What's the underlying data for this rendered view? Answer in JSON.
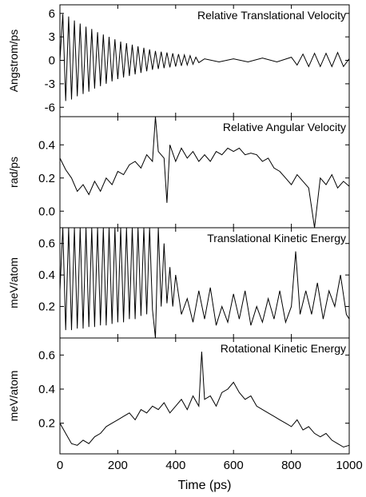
{
  "chart_data": {
    "type": "line",
    "x_shared": {
      "label": "Time (ps)",
      "range": [
        0,
        1000
      ],
      "ticks": [
        0,
        200,
        400,
        600,
        800,
        1000
      ]
    },
    "panels": [
      {
        "title": "Relative Translational Velocity",
        "ylabel": "Angstrom/ps",
        "ylim": [
          -7.2,
          7.1
        ],
        "yticks": [
          -6,
          -3,
          0,
          3,
          6
        ],
        "ytick_labels": [
          "-6",
          "-3",
          "0",
          "3",
          "6"
        ],
        "series": [
          {
            "x": [
              0,
              10,
              20,
              30,
              40,
              50,
              60,
              70,
              80,
              90,
              100,
              110,
              120,
              130,
              140,
              150,
              160,
              170,
              180,
              190,
              200,
              210,
              220,
              230,
              240,
              250,
              260,
              270,
              280,
              290,
              300,
              310,
              320,
              330,
              340,
              350,
              360,
              370,
              380,
              390,
              400,
              410,
              420,
              430,
              440,
              450,
              460,
              470,
              480,
              500,
              550,
              600,
              650,
              700,
              750,
              800,
              820,
              840,
              860,
              880,
              900,
              920,
              940,
              960,
              980,
              1000
            ],
            "y": [
              0,
              5.9,
              -5.2,
              5.6,
              -5.0,
              5.1,
              -4.6,
              4.7,
              -4.3,
              4.3,
              -4.0,
              4.0,
              -3.6,
              3.6,
              -3.3,
              3.3,
              -3.0,
              3.0,
              -2.7,
              2.7,
              -2.4,
              2.4,
              -2.2,
              2.2,
              -2.0,
              2.0,
              -1.8,
              1.8,
              -1.6,
              1.6,
              -1.4,
              1.4,
              -1.2,
              1.2,
              -1.1,
              1.1,
              -1.0,
              1.0,
              -0.9,
              0.9,
              -0.8,
              0.8,
              -0.7,
              0.7,
              -0.6,
              0.6,
              -0.5,
              0.4,
              -0.3,
              0.2,
              -0.2,
              0.2,
              -0.2,
              0.3,
              -0.2,
              0.4,
              -0.6,
              0.8,
              -0.8,
              0.9,
              -0.8,
              0.9,
              -0.8,
              1.0,
              -0.8,
              0.2
            ]
          }
        ]
      },
      {
        "title": "Relative Angular Velocity",
        "ylabel": "rad/ps",
        "ylim": [
          -0.1,
          0.57
        ],
        "yticks": [
          0.0,
          0.2,
          0.4
        ],
        "ytick_labels": [
          "0.0",
          "0.2",
          "0.4"
        ],
        "series": [
          {
            "x": [
              0,
              20,
              40,
              60,
              80,
              100,
              120,
              140,
              160,
              180,
              200,
              220,
              240,
              260,
              280,
              300,
              320,
              330,
              340,
              360,
              370,
              380,
              400,
              420,
              440,
              460,
              480,
              500,
              520,
              540,
              560,
              580,
              600,
              620,
              640,
              660,
              680,
              700,
              720,
              740,
              760,
              780,
              800,
              820,
              840,
              860,
              880,
              900,
              920,
              940,
              960,
              980,
              1000
            ],
            "y": [
              0.32,
              0.25,
              0.2,
              0.12,
              0.16,
              0.1,
              0.18,
              0.12,
              0.2,
              0.16,
              0.24,
              0.22,
              0.28,
              0.3,
              0.26,
              0.34,
              0.3,
              0.57,
              0.36,
              0.32,
              0.05,
              0.4,
              0.3,
              0.38,
              0.32,
              0.36,
              0.3,
              0.34,
              0.3,
              0.36,
              0.34,
              0.38,
              0.36,
              0.38,
              0.34,
              0.35,
              0.34,
              0.3,
              0.32,
              0.26,
              0.24,
              0.2,
              0.16,
              0.22,
              0.18,
              0.14,
              -0.1,
              0.2,
              0.16,
              0.22,
              0.14,
              0.18,
              0.15
            ]
          }
        ]
      },
      {
        "title": "Translational Kinetic Energy",
        "ylabel": "meV/atom",
        "ylim": [
          0,
          0.7
        ],
        "yticks": [
          0.2,
          0.4,
          0.6
        ],
        "ytick_labels": [
          "0.2",
          "0.4",
          "0.6"
        ],
        "series": [
          {
            "x": [
              0,
              10,
              20,
              30,
              40,
              50,
              60,
              70,
              80,
              90,
              100,
              110,
              120,
              130,
              140,
              150,
              160,
              170,
              180,
              190,
              200,
              210,
              220,
              230,
              240,
              250,
              260,
              270,
              280,
              290,
              300,
              310,
              320,
              330,
              340,
              350,
              360,
              370,
              380,
              390,
              400,
              420,
              440,
              460,
              480,
              500,
              520,
              540,
              560,
              580,
              600,
              620,
              640,
              660,
              680,
              700,
              720,
              740,
              760,
              780,
              800,
              815,
              830,
              850,
              870,
              890,
              910,
              930,
              950,
              970,
              990,
              1000
            ],
            "y": [
              0.3,
              0.7,
              0.05,
              0.7,
              0.05,
              0.7,
              0.06,
              0.7,
              0.06,
              0.7,
              0.07,
              0.7,
              0.07,
              0.7,
              0.08,
              0.7,
              0.08,
              0.7,
              0.09,
              0.7,
              0.1,
              0.7,
              0.1,
              0.7,
              0.12,
              0.7,
              0.12,
              0.7,
              0.14,
              0.7,
              0.15,
              0.7,
              0.18,
              0.0,
              0.7,
              0.2,
              0.6,
              0.22,
              0.45,
              0.2,
              0.4,
              0.15,
              0.25,
              0.1,
              0.3,
              0.12,
              0.32,
              0.08,
              0.2,
              0.1,
              0.28,
              0.12,
              0.3,
              0.08,
              0.2,
              0.1,
              0.25,
              0.12,
              0.3,
              0.1,
              0.2,
              0.55,
              0.15,
              0.3,
              0.15,
              0.35,
              0.12,
              0.3,
              0.2,
              0.4,
              0.15,
              0.12
            ]
          }
        ]
      },
      {
        "title": "Rotational Kinetic Energy",
        "ylabel": "meV/atom",
        "ylim": [
          0.02,
          0.7
        ],
        "yticks": [
          0.2,
          0.4,
          0.6
        ],
        "ytick_labels": [
          "0.2",
          "0.4",
          "0.6"
        ],
        "series": [
          {
            "x": [
              0,
              20,
              40,
              60,
              80,
              100,
              120,
              140,
              160,
              180,
              200,
              220,
              240,
              260,
              280,
              300,
              320,
              340,
              360,
              380,
              400,
              420,
              440,
              460,
              480,
              490,
              500,
              520,
              540,
              560,
              580,
              600,
              620,
              640,
              660,
              680,
              700,
              720,
              740,
              760,
              780,
              800,
              820,
              840,
              860,
              880,
              900,
              920,
              940,
              960,
              980,
              1000
            ],
            "y": [
              0.2,
              0.14,
              0.08,
              0.07,
              0.1,
              0.08,
              0.12,
              0.14,
              0.18,
              0.2,
              0.22,
              0.24,
              0.26,
              0.22,
              0.28,
              0.26,
              0.3,
              0.28,
              0.32,
              0.26,
              0.3,
              0.34,
              0.28,
              0.36,
              0.3,
              0.62,
              0.34,
              0.36,
              0.3,
              0.38,
              0.4,
              0.44,
              0.38,
              0.34,
              0.36,
              0.3,
              0.28,
              0.26,
              0.24,
              0.22,
              0.2,
              0.18,
              0.22,
              0.16,
              0.18,
              0.14,
              0.12,
              0.14,
              0.1,
              0.08,
              0.06,
              0.07
            ]
          }
        ]
      }
    ]
  }
}
